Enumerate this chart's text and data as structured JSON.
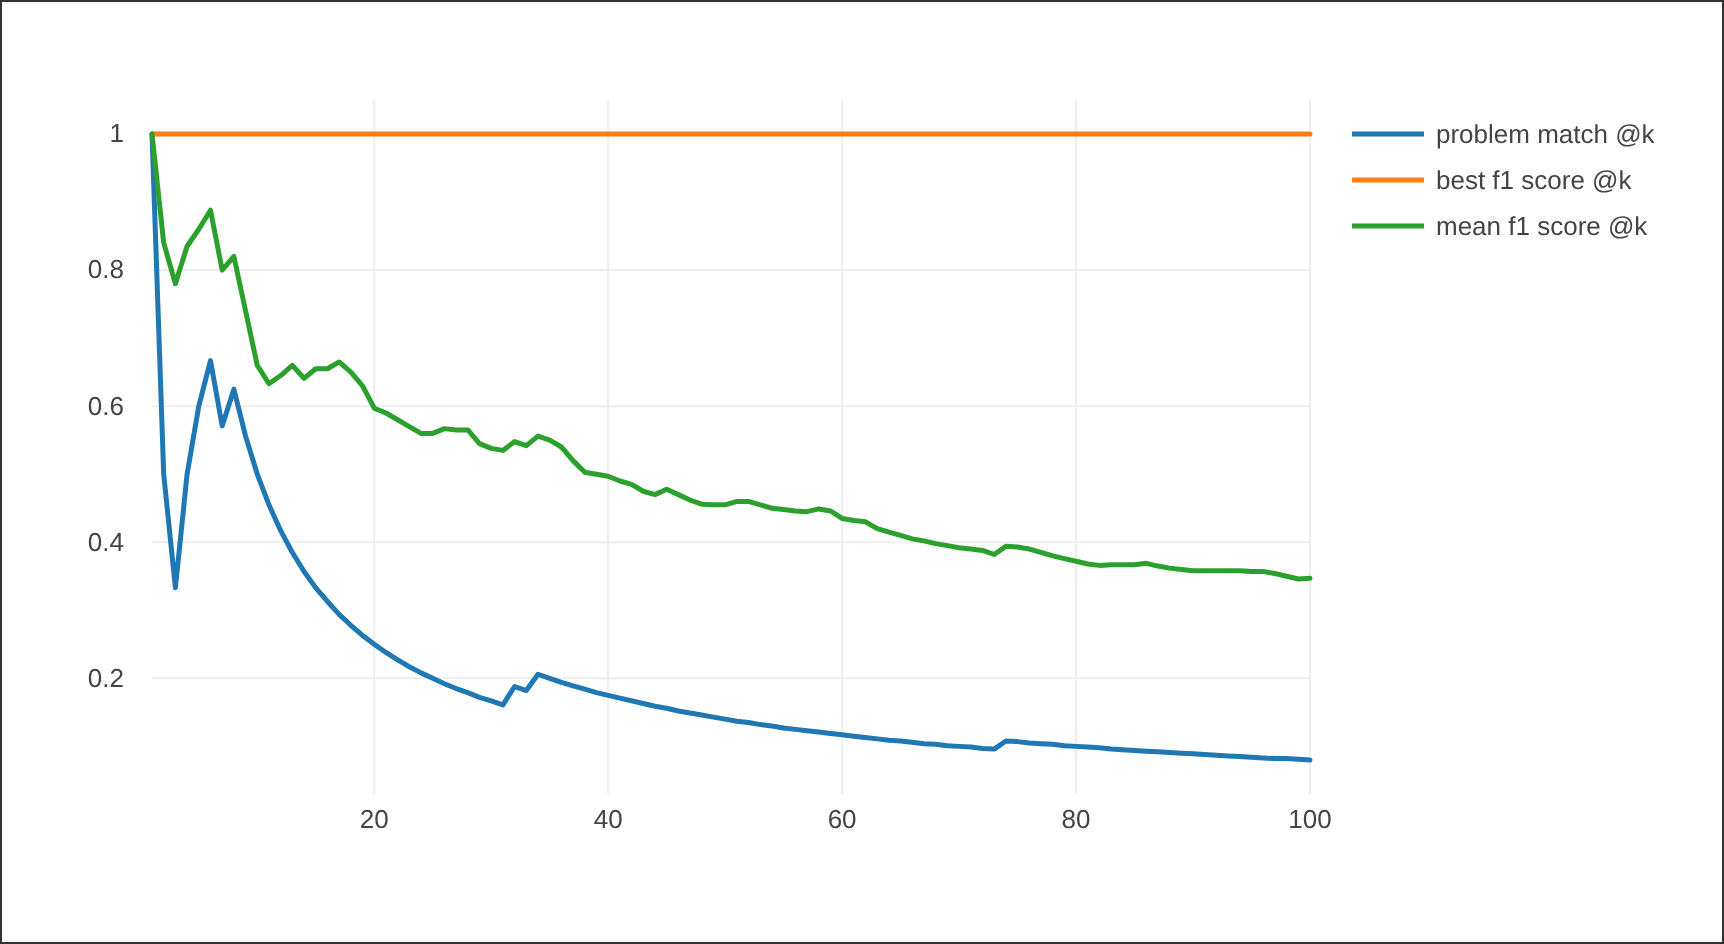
{
  "chart_data": {
    "type": "line",
    "xlim": [
      1,
      100
    ],
    "ylim": [
      0.03,
      1.05
    ],
    "xticks": [
      20,
      40,
      60,
      80,
      100
    ],
    "yticks": [
      {
        "value": 0.2,
        "label": "0.2"
      },
      {
        "value": 0.4,
        "label": "0.4"
      },
      {
        "value": 0.6,
        "label": "0.6"
      },
      {
        "value": 0.8,
        "label": "0.8"
      },
      1
    ],
    "grid": true,
    "legend": "top right",
    "line_style": "solid",
    "marker": "none",
    "x": [
      1,
      2,
      3,
      4,
      5,
      6,
      7,
      8,
      9,
      10,
      11,
      12,
      13,
      14,
      15,
      16,
      17,
      18,
      19,
      20,
      21,
      22,
      23,
      24,
      25,
      26,
      27,
      28,
      29,
      30,
      31,
      32,
      33,
      34,
      35,
      36,
      37,
      38,
      39,
      40,
      41,
      42,
      43,
      44,
      45,
      46,
      47,
      48,
      49,
      50,
      51,
      52,
      53,
      54,
      55,
      56,
      57,
      58,
      59,
      60,
      61,
      62,
      63,
      64,
      65,
      66,
      67,
      68,
      69,
      70,
      71,
      72,
      73,
      74,
      75,
      76,
      77,
      78,
      79,
      80,
      81,
      82,
      83,
      84,
      85,
      86,
      87,
      88,
      89,
      90,
      91,
      92,
      93,
      94,
      95,
      96,
      97,
      98,
      99,
      100
    ],
    "series": [
      {
        "name": "problem match @k",
        "color": "#1f77b4",
        "values": [
          1,
          0.5,
          0.333,
          0.5,
          0.6,
          0.667,
          0.571,
          0.625,
          0.556,
          0.5,
          0.455,
          0.417,
          0.385,
          0.357,
          0.333,
          0.313,
          0.294,
          0.278,
          0.263,
          0.25,
          0.238,
          0.227,
          0.217,
          0.208,
          0.2,
          0.192,
          0.185,
          0.179,
          0.172,
          0.167,
          0.161,
          0.188,
          0.182,
          0.206,
          0.2,
          0.194,
          0.189,
          0.184,
          0.179,
          0.175,
          0.171,
          0.167,
          0.163,
          0.159,
          0.156,
          0.152,
          0.149,
          0.146,
          0.143,
          0.14,
          0.137,
          0.135,
          0.132,
          0.13,
          0.127,
          0.125,
          0.123,
          0.121,
          0.119,
          0.117,
          0.115,
          0.113,
          0.111,
          0.109,
          0.108,
          0.106,
          0.104,
          0.103,
          0.101,
          0.1,
          0.099,
          0.097,
          0.096,
          0.108,
          0.107,
          0.105,
          0.104,
          0.103,
          0.101,
          0.1,
          0.099,
          0.098,
          0.096,
          0.095,
          0.094,
          0.093,
          0.092,
          0.091,
          0.09,
          0.089,
          0.088,
          0.087,
          0.086,
          0.085,
          0.084,
          0.083,
          0.082,
          0.082,
          0.081,
          0.08
        ]
      },
      {
        "name": "best f1 score @k",
        "color": "#ff7f0e",
        "x": [
          1,
          100
        ],
        "values": [
          1,
          1
        ]
      },
      {
        "name": "mean f1 score @k",
        "color": "#2ca02c",
        "values": [
          1,
          0.84,
          0.78,
          0.835,
          0.86,
          0.888,
          0.8,
          0.82,
          0.74,
          0.66,
          0.633,
          0.645,
          0.66,
          0.641,
          0.655,
          0.655,
          0.665,
          0.65,
          0.63,
          0.597,
          0.59,
          0.58,
          0.57,
          0.56,
          0.56,
          0.567,
          0.565,
          0.565,
          0.545,
          0.538,
          0.535,
          0.548,
          0.542,
          0.556,
          0.55,
          0.54,
          0.52,
          0.503,
          0.5,
          0.497,
          0.49,
          0.485,
          0.475,
          0.47,
          0.478,
          0.47,
          0.462,
          0.456,
          0.455,
          0.455,
          0.46,
          0.46,
          0.455,
          0.45,
          0.448,
          0.446,
          0.445,
          0.449,
          0.446,
          0.435,
          0.432,
          0.43,
          0.42,
          0.415,
          0.41,
          0.405,
          0.402,
          0.398,
          0.395,
          0.392,
          0.39,
          0.388,
          0.382,
          0.394,
          0.393,
          0.39,
          0.385,
          0.38,
          0.376,
          0.372,
          0.368,
          0.366,
          0.367,
          0.367,
          0.367,
          0.369,
          0.365,
          0.362,
          0.36,
          0.358,
          0.358,
          0.358,
          0.358,
          0.358,
          0.357,
          0.357,
          0.354,
          0.35,
          0.346,
          0.347
        ]
      }
    ]
  }
}
